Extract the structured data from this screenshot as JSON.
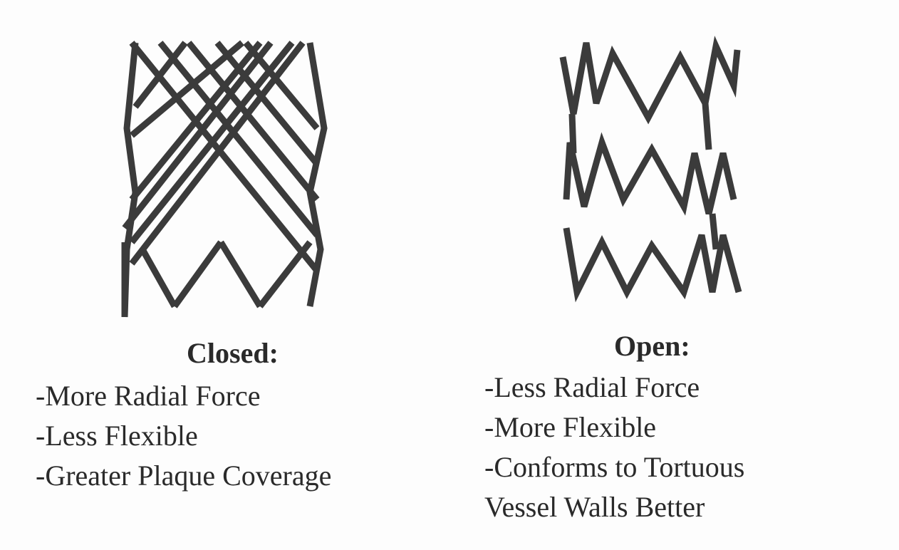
{
  "closed": {
    "title": "Closed:",
    "items": [
      "-More Radial Force",
      "-Less Flexible",
      "-Greater Plaque Coverage"
    ]
  },
  "open": {
    "title": "Open:",
    "items": [
      "-Less Radial Force",
      "-More Flexible",
      "-Conforms to Tortuous",
      "Vessel Walls Better"
    ]
  },
  "colors": {
    "strut": "#3b3b3b",
    "text": "#2a2a2a",
    "background": "#fdfdfd"
  }
}
